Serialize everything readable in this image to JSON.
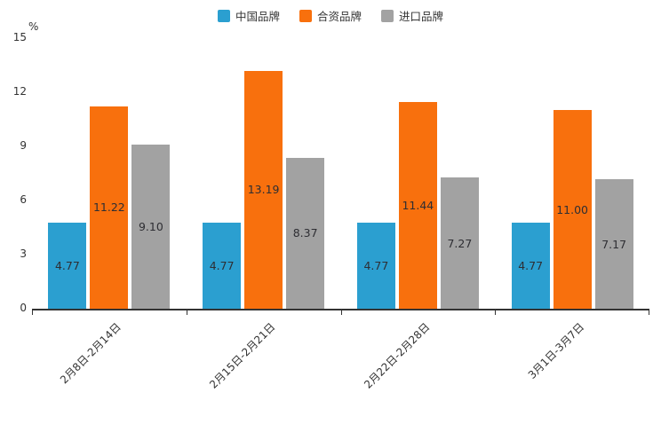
{
  "chart_data": {
    "type": "bar",
    "title": "",
    "ylabel": "%",
    "xlabel": "",
    "ylim": [
      0,
      15
    ],
    "yticks": [
      0,
      3,
      6,
      9,
      12,
      15
    ],
    "grid": false,
    "legend_position": "top",
    "categories": [
      "2月8日-2月14日",
      "2月15日-2月21日",
      "2月22日-2月28日",
      "3月1日-3月7日"
    ],
    "series": [
      {
        "name": "中国品牌",
        "color": "#2b9fd0",
        "values": [
          4.77,
          4.77,
          4.77,
          4.77
        ],
        "labels": [
          "4.77",
          "4.77",
          "4.77",
          "4.77"
        ]
      },
      {
        "name": "合资品牌",
        "color": "#f8700d",
        "values": [
          11.22,
          13.19,
          11.44,
          11.0
        ],
        "labels": [
          "11.22",
          "13.19",
          "11.44",
          "11.00"
        ]
      },
      {
        "name": "进口品牌",
        "color": "#a2a2a2",
        "values": [
          9.1,
          8.37,
          7.27,
          7.17
        ],
        "labels": [
          "9.10",
          "8.37",
          "7.27",
          "7.17"
        ]
      }
    ],
    "colors": {
      "axis": "#333333",
      "label_text": "#2e2e33",
      "background": "#ffffff"
    }
  }
}
